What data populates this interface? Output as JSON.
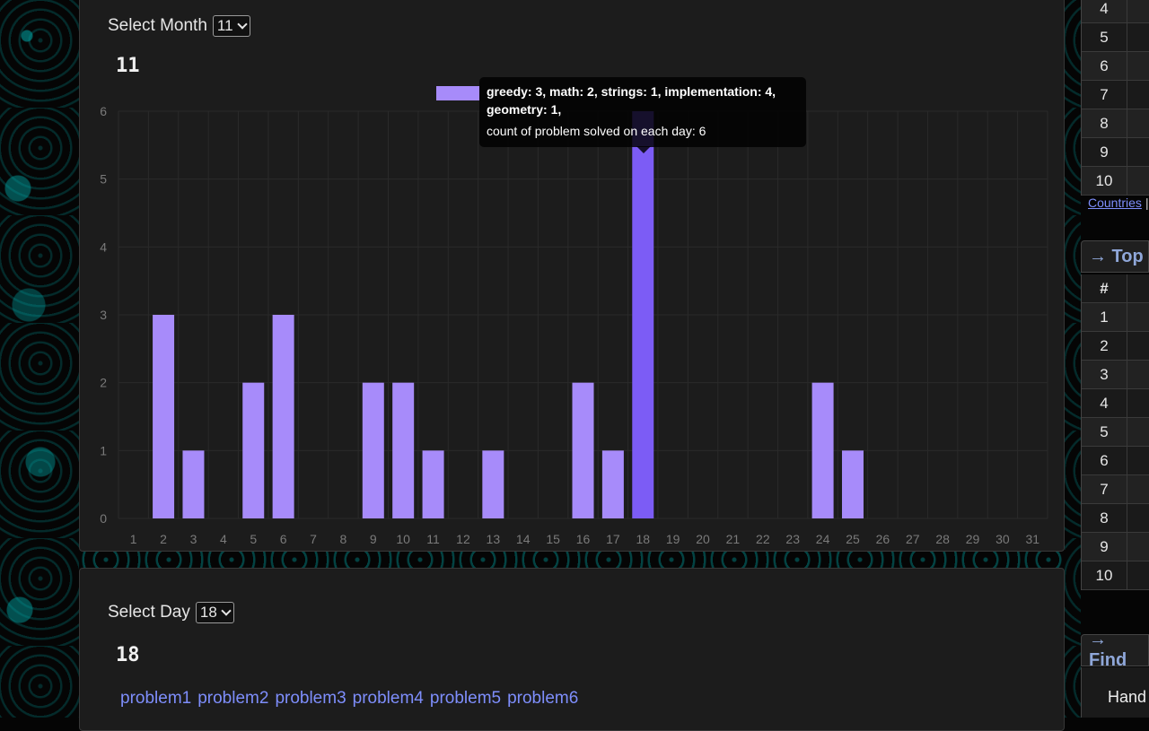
{
  "month_section": {
    "label": "Select Month",
    "selected": "11",
    "heading": "11"
  },
  "day_section": {
    "label": "Select Day",
    "selected": "18",
    "heading": "18",
    "problems": [
      "problem1",
      "problem2",
      "problem3",
      "problem4",
      "problem5",
      "problem6"
    ]
  },
  "chart_data": {
    "type": "bar",
    "categories": [
      "1",
      "2",
      "3",
      "4",
      "5",
      "6",
      "7",
      "8",
      "9",
      "10",
      "11",
      "12",
      "13",
      "14",
      "15",
      "16",
      "17",
      "18",
      "19",
      "20",
      "21",
      "22",
      "23",
      "24",
      "25",
      "26",
      "27",
      "28",
      "29",
      "30",
      "31"
    ],
    "values": [
      0,
      3,
      1,
      0,
      2,
      3,
      0,
      0,
      2,
      2,
      1,
      0,
      1,
      0,
      0,
      2,
      1,
      6,
      0,
      0,
      0,
      0,
      0,
      2,
      1,
      0,
      0,
      0,
      0,
      0,
      0
    ],
    "ylim": [
      0,
      6
    ],
    "yticks": [
      "0",
      "1",
      "2",
      "3",
      "4",
      "5",
      "6"
    ],
    "highlighted_category": "18",
    "tooltip": {
      "tags": "greedy: 3, math: 2, strings: 1, implementation: 4, geometry: 1,",
      "count": "count of problem solved on each day: 6"
    },
    "colors": {
      "bar": "#a78bfa",
      "bar_active": "#7c5cf5",
      "grid": "#2a2a2a",
      "tick": "#7a7a7a"
    }
  },
  "right_column": {
    "top_rows": [
      "4",
      "5",
      "6",
      "7",
      "8",
      "9",
      "10"
    ],
    "countries_link": "Countries",
    "pipe": "|",
    "panel_top_title": "→ Top",
    "rank_header": "#",
    "rank_rows": [
      "1",
      "2",
      "3",
      "4",
      "5",
      "6",
      "7",
      "8",
      "9",
      "10"
    ],
    "panel_find_title": "→ Find",
    "find_label": "Hand"
  }
}
